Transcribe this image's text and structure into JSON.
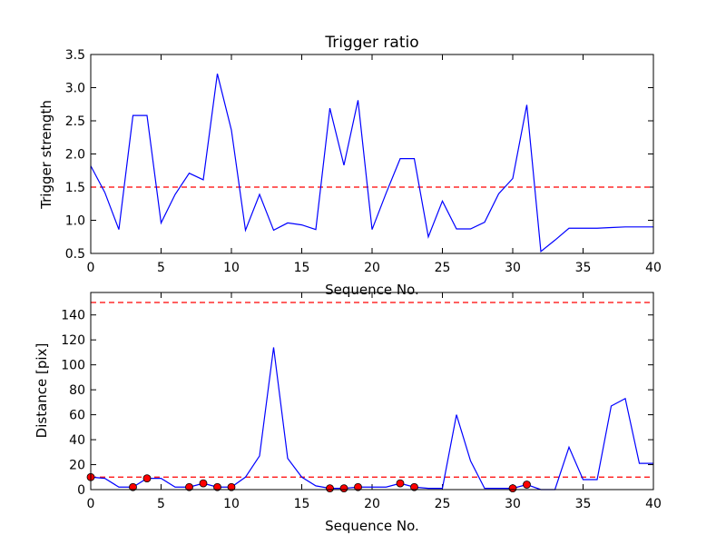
{
  "chart_data": [
    {
      "type": "line",
      "title": "Trigger ratio",
      "xlabel": "Sequence No.",
      "ylabel": "Trigger strength",
      "xlim": [
        0,
        40
      ],
      "ylim": [
        0.5,
        3.5
      ],
      "xticks": [
        0,
        5,
        10,
        15,
        20,
        25,
        30,
        35,
        40
      ],
      "yticks": [
        0.5,
        1.0,
        1.5,
        2.0,
        2.5,
        3.0,
        3.5
      ],
      "ytick_labels": [
        "0.5",
        "1.0",
        "1.5",
        "2.0",
        "2.5",
        "3.0",
        "3.5"
      ],
      "line_color": "#0000ff",
      "threshold": {
        "y": 1.5,
        "color": "#ff0000",
        "style": "dashed"
      },
      "x": [
        0,
        1,
        2,
        3,
        4,
        5,
        6,
        7,
        8,
        9,
        10,
        11,
        12,
        13,
        14,
        15,
        16,
        17,
        18,
        19,
        20,
        21,
        22,
        23,
        24,
        25,
        26,
        27,
        28,
        29,
        30,
        31,
        32,
        33,
        34,
        35,
        36,
        37,
        38,
        39,
        40
      ],
      "y": [
        1.82,
        1.42,
        0.86,
        2.58,
        2.58,
        0.96,
        1.39,
        1.71,
        1.61,
        3.21,
        2.36,
        0.85,
        1.39,
        0.85,
        0.96,
        0.93,
        0.86,
        2.69,
        1.83,
        2.81,
        0.86,
        1.41,
        1.93,
        1.93,
        0.75,
        1.29,
        0.87,
        0.87,
        0.97,
        1.4,
        1.63,
        2.74,
        0.53,
        0.7,
        0.88,
        0.88,
        0.88,
        0.89,
        0.9,
        0.9,
        0.9
      ]
    },
    {
      "type": "line",
      "title": "",
      "xlabel": "Sequence No.",
      "ylabel": "Distance [pix]",
      "xlim": [
        0,
        40
      ],
      "ylim": [
        0,
        158
      ],
      "xticks": [
        0,
        5,
        10,
        15,
        20,
        25,
        30,
        35,
        40
      ],
      "yticks": [
        0,
        20,
        40,
        60,
        80,
        100,
        120,
        140
      ],
      "ytick_labels": [
        "0",
        "20",
        "40",
        "60",
        "80",
        "100",
        "120",
        "140"
      ],
      "line_color": "#0000ff",
      "thresholds": [
        {
          "y": 150,
          "color": "#ff0000",
          "style": "dashed"
        },
        {
          "y": 10,
          "color": "#ff0000",
          "style": "dashed"
        }
      ],
      "x": [
        0,
        1,
        2,
        3,
        4,
        5,
        6,
        7,
        8,
        9,
        10,
        11,
        12,
        13,
        14,
        15,
        16,
        17,
        18,
        19,
        20,
        21,
        22,
        23,
        24,
        25,
        26,
        27,
        28,
        29,
        30,
        31,
        32,
        33,
        34,
        35,
        36,
        37,
        38,
        39,
        40
      ],
      "y": [
        10,
        9,
        2,
        2,
        9,
        9,
        2,
        2,
        5,
        2,
        2,
        10,
        27,
        114,
        25,
        10,
        3,
        1,
        1,
        2,
        2,
        2,
        5,
        2,
        1,
        1,
        60,
        23,
        1,
        1,
        1,
        4,
        0,
        0,
        34,
        8,
        8,
        67,
        73,
        21,
        21
      ],
      "markers": {
        "color": "#ff0000",
        "x": [
          0,
          3,
          4,
          7,
          8,
          9,
          10,
          17,
          18,
          19,
          22,
          23,
          30,
          31
        ],
        "y": [
          10,
          2,
          9,
          2,
          5,
          2,
          2,
          1,
          1,
          2,
          5,
          2,
          1,
          4
        ]
      }
    }
  ]
}
